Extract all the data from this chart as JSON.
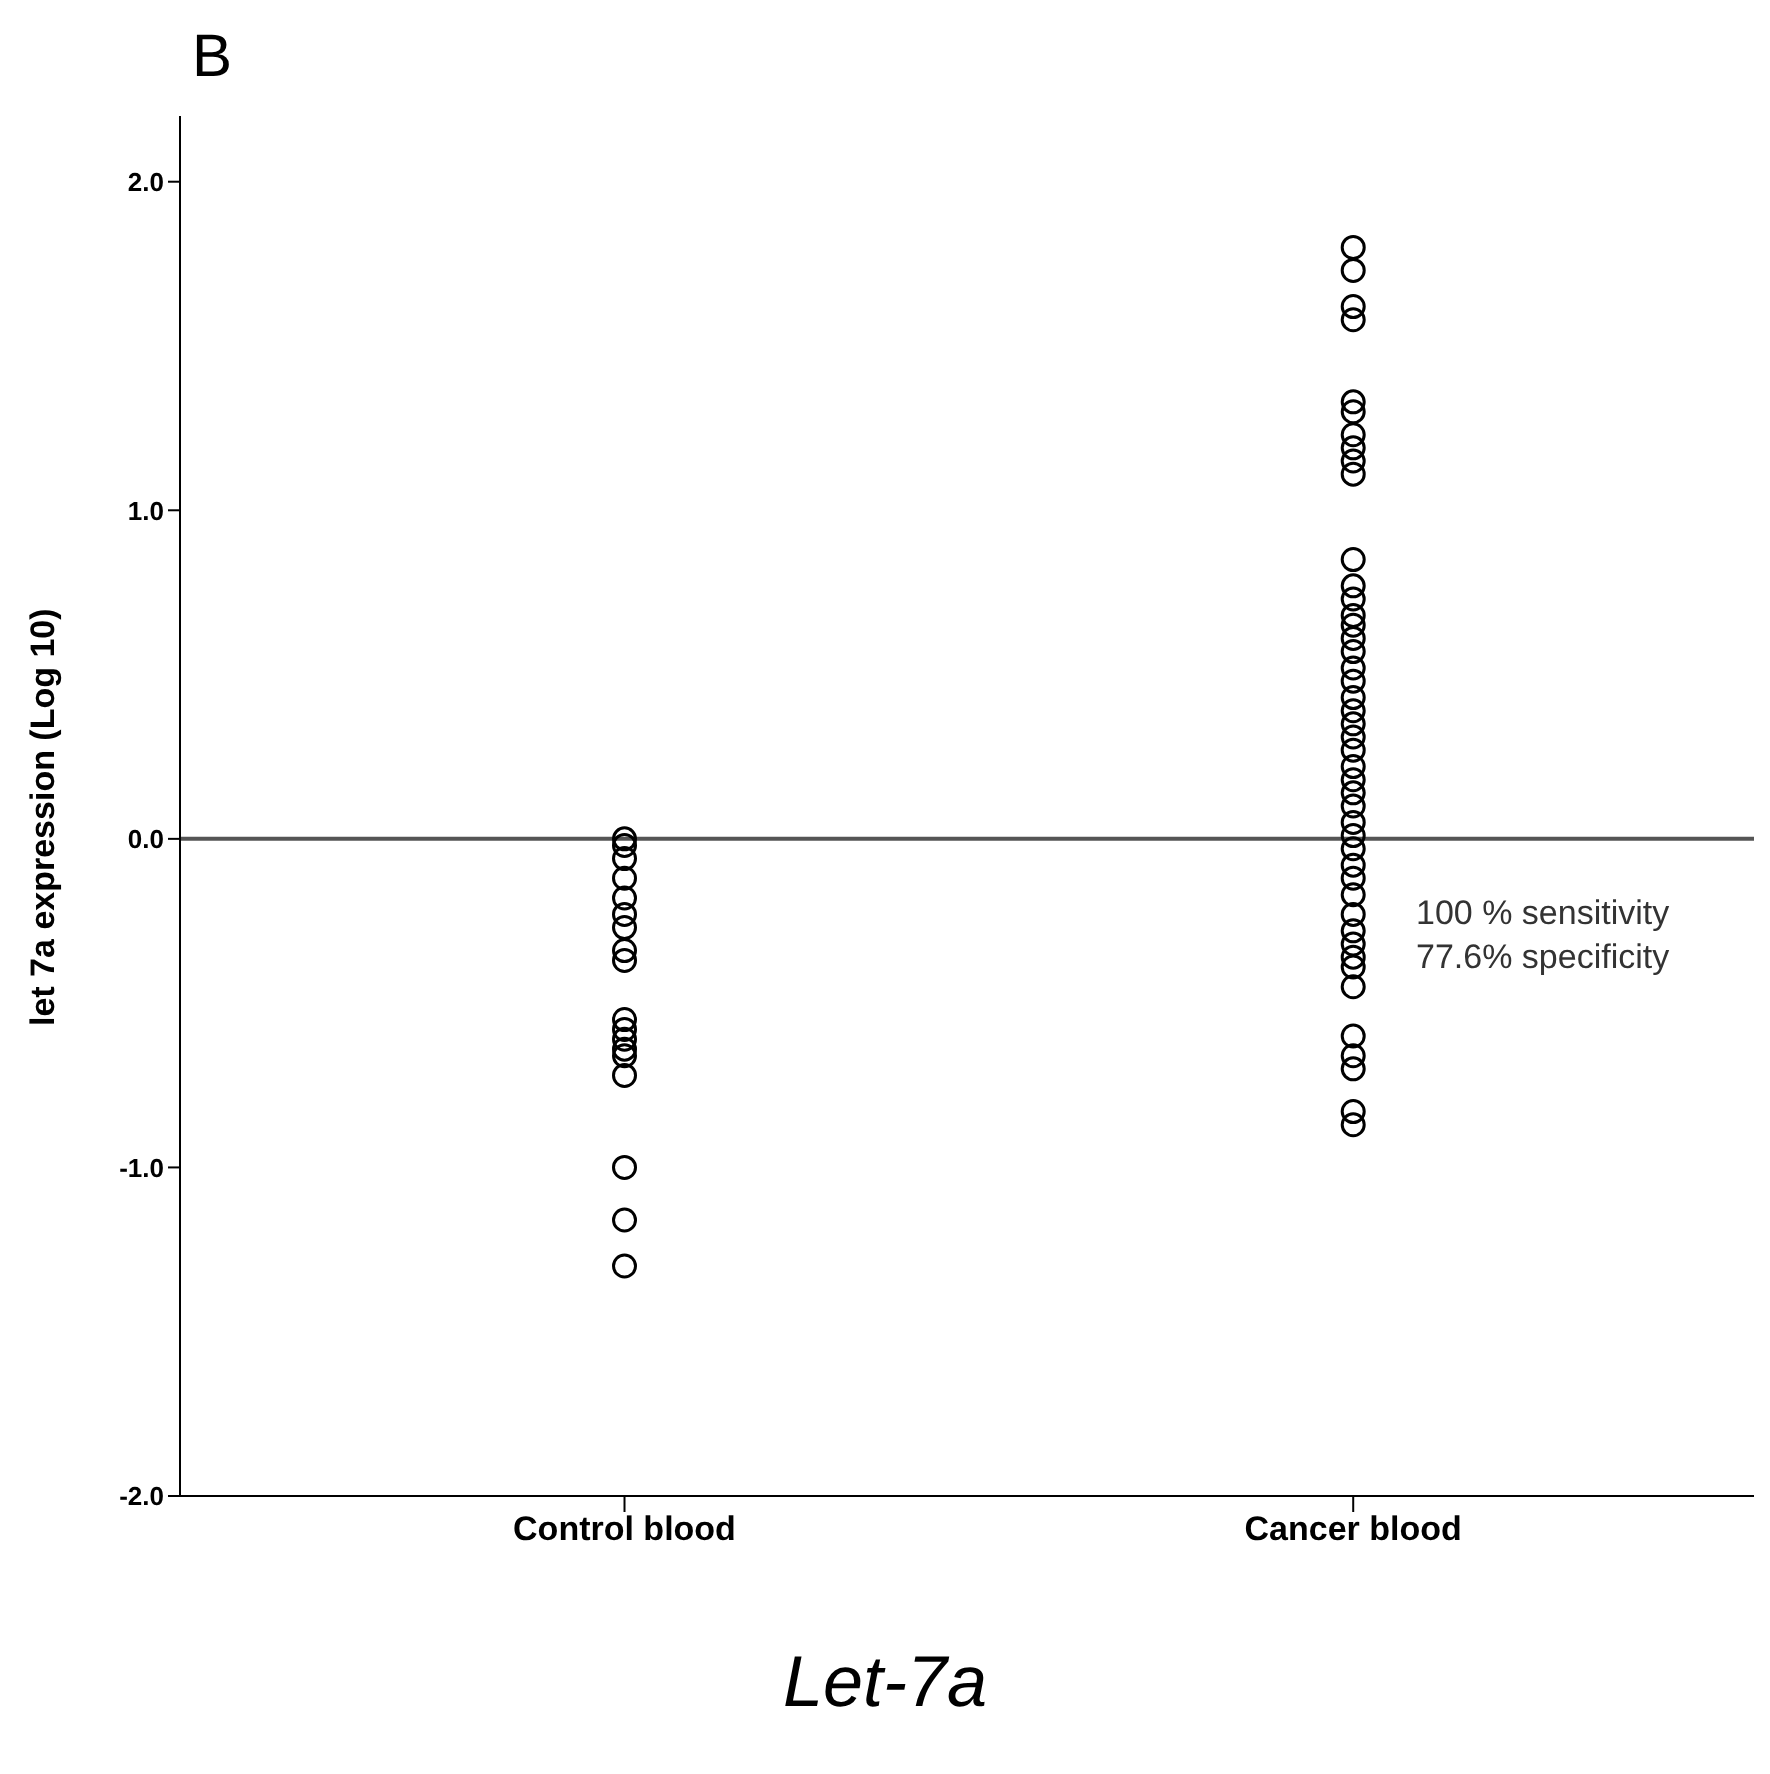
{
  "chart_data": {
    "type": "scatter",
    "title": "Let-7a",
    "ylabel": "let 7a expression (Log 10)",
    "categories": [
      "Control blood",
      "Cancer blood"
    ],
    "series": [
      {
        "color": "#000000",
        "x": [
          "Control blood",
          "Control blood",
          "Control blood",
          "Control blood",
          "Control blood",
          "Control blood",
          "Control blood",
          "Control blood",
          "Control blood",
          "Control blood",
          "Control blood",
          "Control blood",
          "Control blood",
          "Control blood",
          "Control blood",
          "Control blood",
          "Control blood",
          "Control blood",
          "Cancer blood",
          "Cancer blood",
          "Cancer blood",
          "Cancer blood",
          "Cancer blood",
          "Cancer blood",
          "Cancer blood",
          "Cancer blood",
          "Cancer blood",
          "Cancer blood",
          "Cancer blood",
          "Cancer blood",
          "Cancer blood",
          "Cancer blood",
          "Cancer blood",
          "Cancer blood",
          "Cancer blood",
          "Cancer blood",
          "Cancer blood",
          "Cancer blood",
          "Cancer blood",
          "Cancer blood",
          "Cancer blood",
          "Cancer blood",
          "Cancer blood",
          "Cancer blood",
          "Cancer blood",
          "Cancer blood",
          "Cancer blood",
          "Cancer blood",
          "Cancer blood",
          "Cancer blood",
          "Cancer blood",
          "Cancer blood",
          "Cancer blood",
          "Cancer blood",
          "Cancer blood",
          "Cancer blood",
          "Cancer blood",
          "Cancer blood",
          "Cancer blood",
          "Cancer blood",
          "Cancer blood",
          "Cancer blood",
          "Cancer blood"
        ],
        "values": [
          0,
          -0.02,
          -0.06,
          -0.12,
          -0.18,
          -0.23,
          -0.27,
          -0.34,
          -0.37,
          -0.55,
          -0.58,
          -0.61,
          -0.64,
          -0.66,
          -0.72,
          -1.0,
          -1.16,
          -1.3,
          1.8,
          1.73,
          1.62,
          1.58,
          1.33,
          1.3,
          1.23,
          1.19,
          1.15,
          1.11,
          0.85,
          0.77,
          0.73,
          0.68,
          0.65,
          0.61,
          0.57,
          0.52,
          0.48,
          0.43,
          0.39,
          0.35,
          0.31,
          0.27,
          0.22,
          0.18,
          0.14,
          0.1,
          0.05,
          0.01,
          -0.03,
          -0.08,
          -0.12,
          -0.17,
          -0.23,
          -0.28,
          -0.32,
          -0.36,
          -0.39,
          -0.45,
          -0.6,
          -0.66,
          -0.7,
          -0.83,
          -0.87
        ]
      }
    ],
    "ylim": [
      -2.0,
      2.2
    ],
    "yticks": [
      {
        "value": -2,
        "label": "-2.0"
      },
      {
        "value": -1,
        "label": "-1.0"
      },
      {
        "value": 0,
        "label": "0.0"
      },
      {
        "value": 1,
        "label": "1.0"
      },
      {
        "value": 2,
        "label": "2.0"
      }
    ],
    "ref_lines": [
      {
        "axis": "y",
        "value": 0,
        "color": "#555555"
      }
    ],
    "annotations": [
      "B",
      "100 % sensitivity",
      "77.6% specificity"
    ],
    "marker": "circle",
    "grid": false
  }
}
